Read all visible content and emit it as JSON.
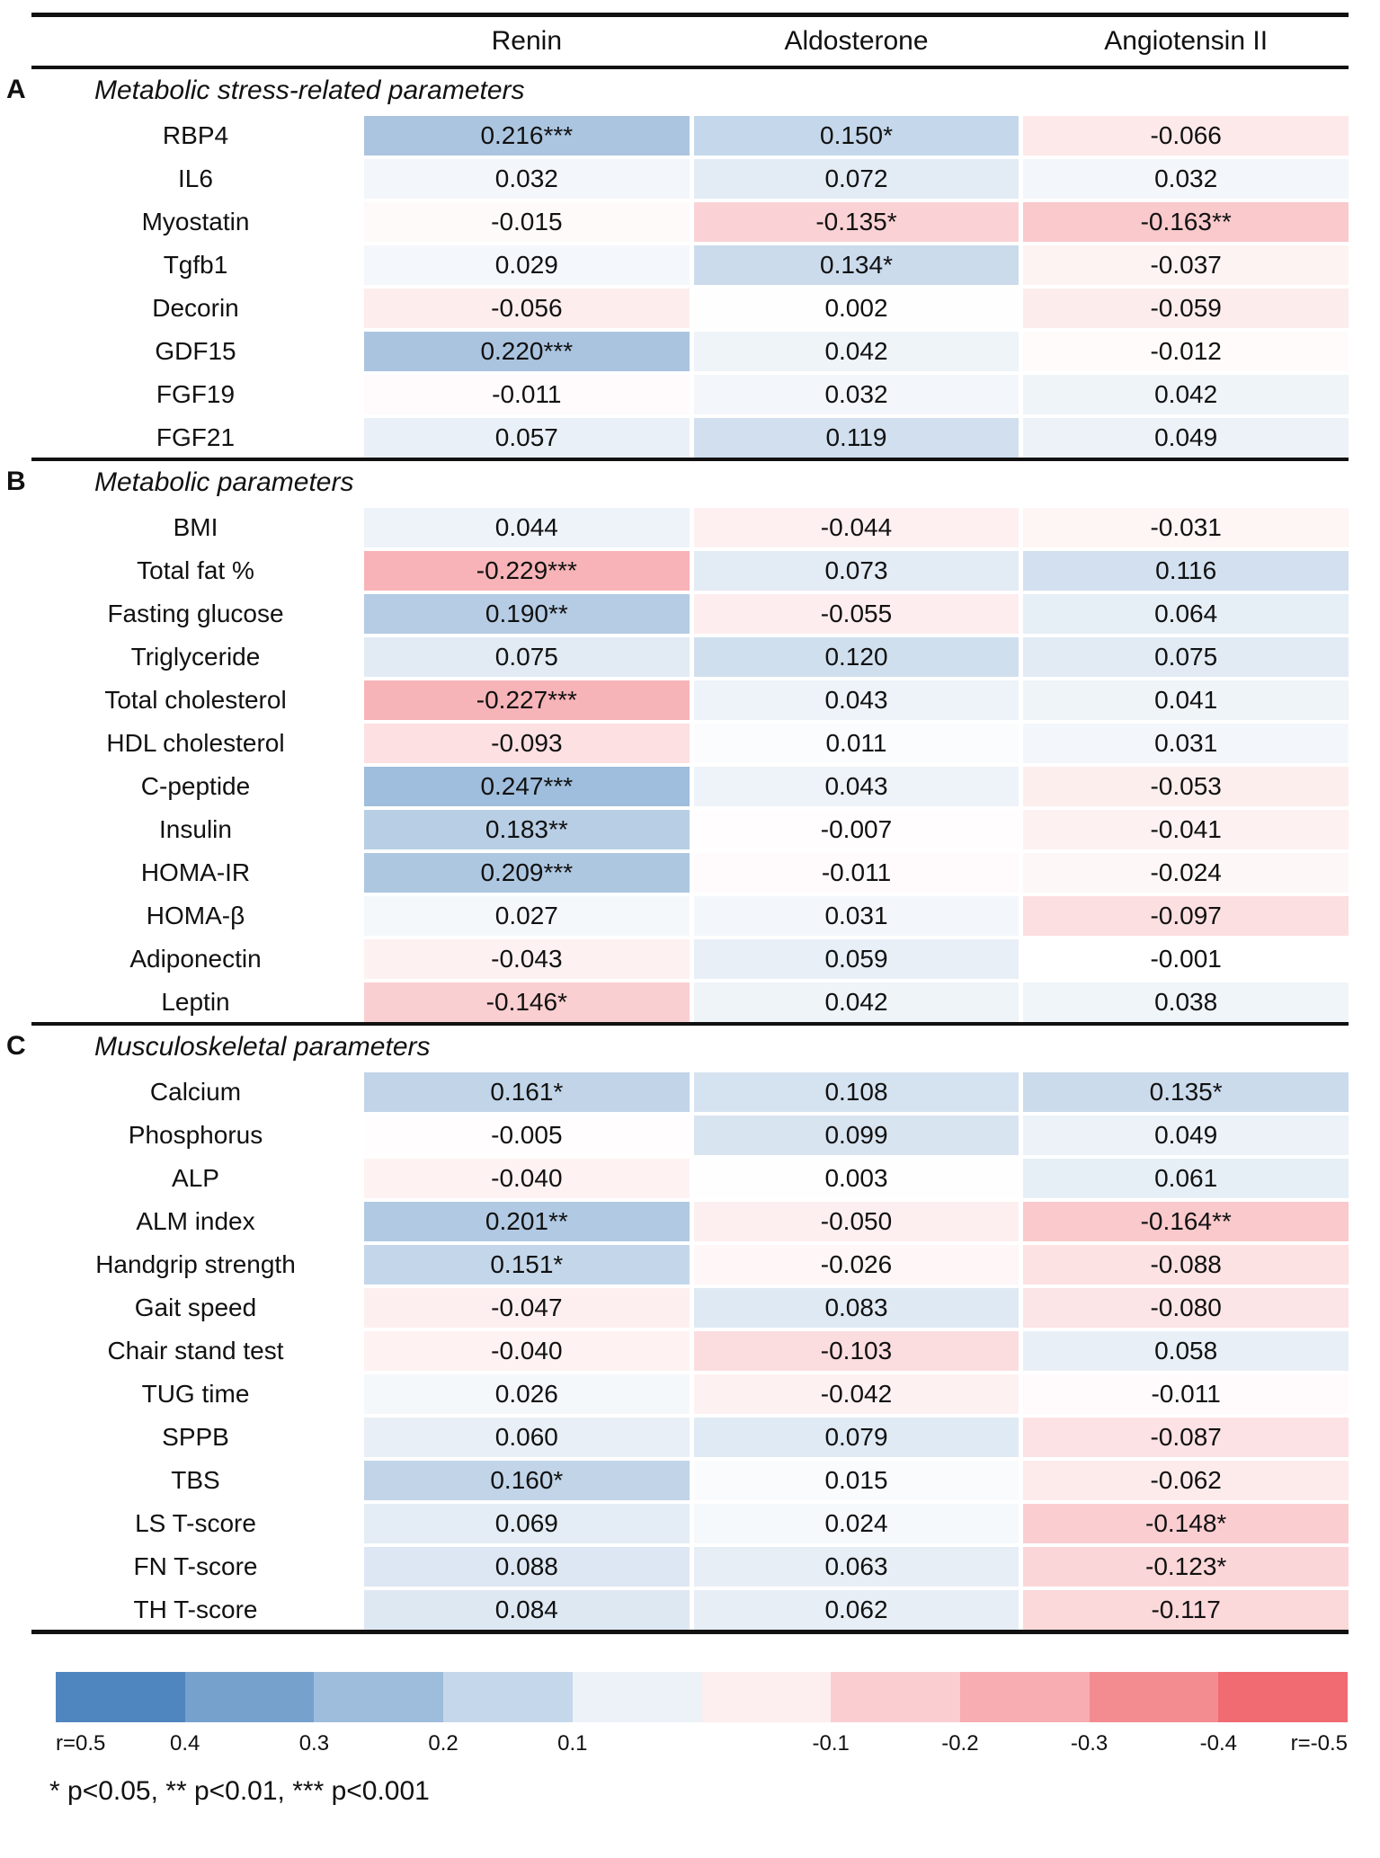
{
  "chart_data": {
    "type": "heatmap",
    "columns": [
      "Renin",
      "Aldosterone",
      "Angiotensin II"
    ],
    "sections": [
      {
        "id": "A",
        "title": "Metabolic stress-related parameters",
        "rows": [
          {
            "label": "RBP4",
            "values": [
              "0.216***",
              "0.150*",
              "-0.066"
            ]
          },
          {
            "label": "IL6",
            "values": [
              "0.032",
              "0.072",
              "0.032"
            ]
          },
          {
            "label": "Myostatin",
            "values": [
              "-0.015",
              "-0.135*",
              "-0.163**"
            ]
          },
          {
            "label": "Tgfb1",
            "values": [
              "0.029",
              "0.134*",
              "-0.037"
            ]
          },
          {
            "label": "Decorin",
            "values": [
              "-0.056",
              "0.002",
              "-0.059"
            ]
          },
          {
            "label": "GDF15",
            "values": [
              "0.220***",
              "0.042",
              "-0.012"
            ]
          },
          {
            "label": "FGF19",
            "values": [
              "-0.011",
              "0.032",
              "0.042"
            ]
          },
          {
            "label": "FGF21",
            "values": [
              "0.057",
              "0.119",
              "0.049"
            ]
          }
        ]
      },
      {
        "id": "B",
        "title": "Metabolic parameters",
        "rows": [
          {
            "label": "BMI",
            "values": [
              "0.044",
              "-0.044",
              "-0.031"
            ]
          },
          {
            "label": "Total fat %",
            "values": [
              "-0.229***",
              "0.073",
              "0.116"
            ]
          },
          {
            "label": "Fasting glucose",
            "values": [
              "0.190**",
              "-0.055",
              "0.064"
            ]
          },
          {
            "label": "Triglyceride",
            "values": [
              "0.075",
              "0.120",
              "0.075"
            ]
          },
          {
            "label": "Total cholesterol",
            "values": [
              "-0.227***",
              "0.043",
              "0.041"
            ]
          },
          {
            "label": "HDL cholesterol",
            "values": [
              "-0.093",
              "0.011",
              "0.031"
            ]
          },
          {
            "label": "C-peptide",
            "values": [
              "0.247***",
              "0.043",
              "-0.053"
            ]
          },
          {
            "label": "Insulin",
            "values": [
              "0.183**",
              "-0.007",
              "-0.041"
            ]
          },
          {
            "label": "HOMA-IR",
            "values": [
              "0.209***",
              "-0.011",
              "-0.024"
            ]
          },
          {
            "label": "HOMA-β",
            "values": [
              "0.027",
              "0.031",
              "-0.097"
            ]
          },
          {
            "label": "Adiponectin",
            "values": [
              "-0.043",
              "0.059",
              "-0.001"
            ]
          },
          {
            "label": "Leptin",
            "values": [
              "-0.146*",
              "0.042",
              "0.038"
            ]
          }
        ]
      },
      {
        "id": "C",
        "title": "Musculoskeletal parameters",
        "rows": [
          {
            "label": "Calcium",
            "values": [
              "0.161*",
              "0.108",
              "0.135*"
            ]
          },
          {
            "label": "Phosphorus",
            "values": [
              "-0.005",
              "0.099",
              "0.049"
            ]
          },
          {
            "label": "ALP",
            "values": [
              "-0.040",
              "0.003",
              "0.061"
            ]
          },
          {
            "label": "ALM index",
            "values": [
              "0.201**",
              "-0.050",
              "-0.164**"
            ]
          },
          {
            "label": "Handgrip strength",
            "values": [
              "0.151*",
              "-0.026",
              "-0.088"
            ]
          },
          {
            "label": "Gait speed",
            "values": [
              "-0.047",
              "0.083",
              "-0.080"
            ]
          },
          {
            "label": "Chair stand test",
            "values": [
              "-0.040",
              "-0.103",
              "0.058"
            ]
          },
          {
            "label": "TUG time",
            "values": [
              "0.026",
              "-0.042",
              "-0.011"
            ]
          },
          {
            "label": "SPPB",
            "values": [
              "0.060",
              "0.079",
              "-0.087"
            ]
          },
          {
            "label": "TBS",
            "values": [
              "0.160*",
              "0.015",
              "-0.062"
            ]
          },
          {
            "label": "LS T-score",
            "values": [
              "0.069",
              "0.024",
              "-0.148*"
            ]
          },
          {
            "label": "FN T-score",
            "values": [
              "0.088",
              "0.063",
              "-0.123*"
            ]
          },
          {
            "label": "TH T-score",
            "values": [
              "0.084",
              "0.062",
              "-0.117"
            ]
          }
        ]
      }
    ],
    "colormap": {
      "positive_end": "#3d79b8",
      "negative_end": "#ee5a62",
      "domain": [
        -0.5,
        0.5
      ]
    },
    "legend": {
      "labels": [
        "r=0.5",
        "0.4",
        "0.3",
        "0.2",
        "0.1",
        "-0.1",
        "-0.2",
        "-0.3",
        "-0.4",
        "r=-0.5"
      ],
      "swatch_values": [
        0.45,
        0.35,
        0.25,
        0.15,
        0.05,
        -0.05,
        -0.15,
        -0.25,
        -0.35,
        -0.45
      ]
    },
    "footnote": "* p<0.05, ** p<0.01, *** p<0.001"
  }
}
